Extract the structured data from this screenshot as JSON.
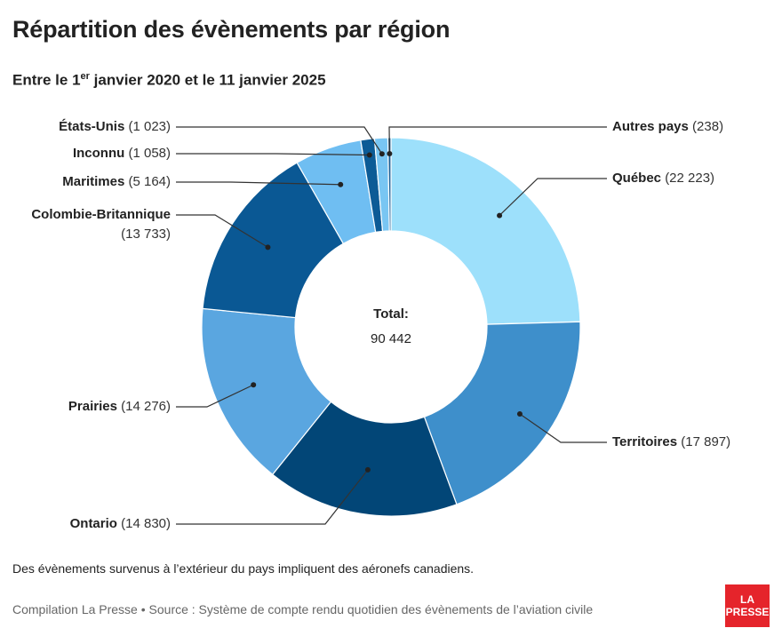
{
  "header": {
    "title": "Répartition des évènements par région",
    "subtitle_start": "Entre le 1",
    "subtitle_sup": "er",
    "subtitle_end": " janvier 2020 et le 11 janvier 2025"
  },
  "chart_data": {
    "type": "pie",
    "donut": true,
    "center_label": "Total:",
    "center_value": "90 442",
    "slices": [
      {
        "name": "Québec",
        "value": 22223,
        "display": "(22 223)",
        "color": "#9de0fb"
      },
      {
        "name": "Territoires",
        "value": 17897,
        "display": "(17 897)",
        "color": "#3e8fcb"
      },
      {
        "name": "Ontario",
        "value": 14830,
        "display": "(14 830)",
        "color": "#024677"
      },
      {
        "name": "Prairies",
        "value": 14276,
        "display": "(14 276)",
        "color": "#5aa6e0"
      },
      {
        "name": "Colombie-Britannique",
        "value": 13733,
        "display": "(13 733)",
        "color": "#0a5894"
      },
      {
        "name": "Maritimes",
        "value": 5164,
        "display": "(5 164)",
        "color": "#6fbef2"
      },
      {
        "name": "Inconnu",
        "value": 1058,
        "display": "(1 058)",
        "color": "#0c5b96"
      },
      {
        "name": "États-Unis",
        "value": 1023,
        "display": "(1 023)",
        "color": "#79c6f3"
      },
      {
        "name": "Autres pays",
        "value": 238,
        "display": "(238)",
        "color": "#1a5f96"
      }
    ]
  },
  "footer": {
    "note": "Des évènements survenus à l’extérieur du pays impliquent des aéronefs canadiens.",
    "source": "Compilation La Presse • Source : Système de compte rendu quotidien des évènements de l’aviation civile",
    "logo_line1": "LA",
    "logo_line2": "PRESSE"
  }
}
